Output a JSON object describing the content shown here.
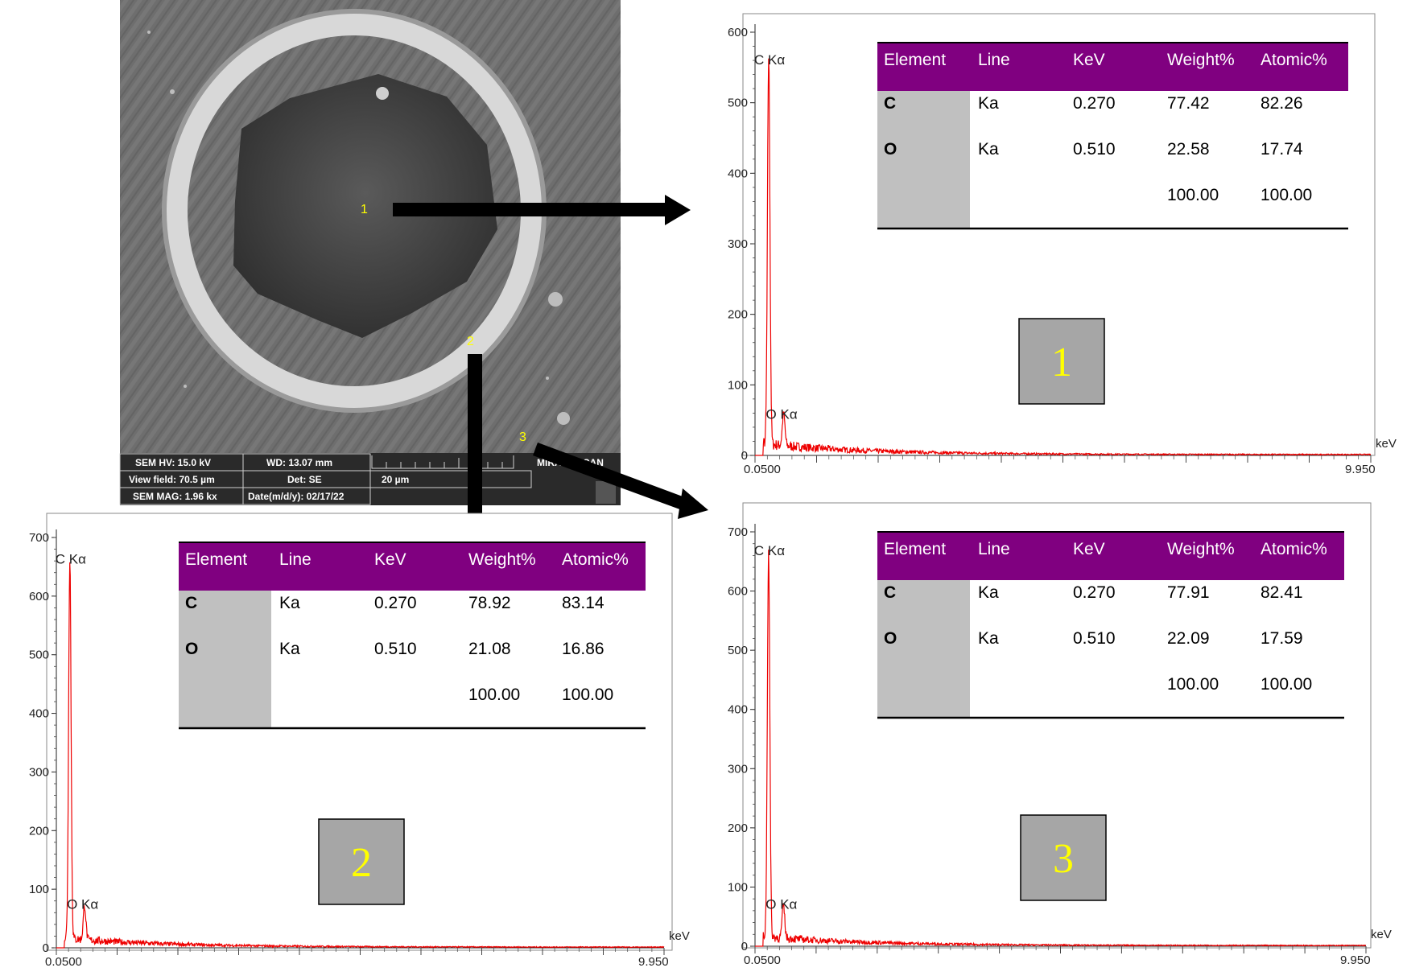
{
  "sem_image": {
    "point_labels": [
      "1",
      "2",
      "3"
    ],
    "info_bar": [
      [
        "SEM HV: 15.0 kV",
        "WD: 13.07 mm",
        "",
        "MIRA TESCAN"
      ],
      [
        "View field: 70.5 µm",
        "Det: SE",
        "20 µm",
        ""
      ],
      [
        "SEM MAG: 1.96 kx",
        "Date(m/d/y): 02/17/22",
        "",
        ""
      ]
    ]
  },
  "colors": {
    "spectrum": "#ee0000",
    "table_header_bg": "#800080",
    "table_header_text": "#ffffff",
    "element_column_bg": "#c0c0c0",
    "marker_box_bg": "#a6a6a6",
    "marker_text": "#ffff00",
    "point_label": "#ffff00"
  },
  "chart_data": [
    {
      "type": "line",
      "marker": "1",
      "x_unit": "keV",
      "xlim": [
        0.05,
        9.95
      ],
      "x_tick_labels": [
        "0.0500",
        "9.950"
      ],
      "ylim": [
        0,
        600
      ],
      "y_ticks": [
        0,
        100,
        200,
        300,
        400,
        500,
        600
      ],
      "peaks": [
        {
          "label": "C Kα",
          "x": 0.27,
          "y": 550
        },
        {
          "label": "O Kα",
          "x": 0.51,
          "y": 45
        }
      ],
      "table": {
        "columns": [
          "Element",
          "Line",
          "KeV",
          "Weight%",
          "Atomic%"
        ],
        "rows": [
          [
            "C",
            "Ka",
            "0.270",
            "77.42",
            "82.26"
          ],
          [
            "O",
            "Ka",
            "0.510",
            "22.58",
            "17.74"
          ],
          [
            "",
            "",
            "",
            "100.00",
            "100.00"
          ]
        ]
      }
    },
    {
      "type": "line",
      "marker": "2",
      "x_unit": "keV",
      "xlim": [
        0.05,
        9.95
      ],
      "x_tick_labels": [
        "0.0500",
        "9.950"
      ],
      "ylim": [
        0,
        700
      ],
      "y_ticks": [
        0,
        100,
        200,
        300,
        400,
        500,
        600,
        700
      ],
      "peaks": [
        {
          "label": "C Kα",
          "x": 0.27,
          "y": 650
        },
        {
          "label": "O Kα",
          "x": 0.51,
          "y": 58
        }
      ],
      "table": {
        "columns": [
          "Element",
          "Line",
          "KeV",
          "Weight%",
          "Atomic%"
        ],
        "rows": [
          [
            "C",
            "Ka",
            "0.270",
            "78.92",
            "83.14"
          ],
          [
            "O",
            "Ka",
            "0.510",
            "21.08",
            "16.86"
          ],
          [
            "",
            "",
            "",
            "100.00",
            "100.00"
          ]
        ]
      }
    },
    {
      "type": "line",
      "marker": "3",
      "x_unit": "keV",
      "xlim": [
        0.05,
        9.95
      ],
      "x_tick_labels": [
        "0.0500",
        "9.950"
      ],
      "ylim": [
        0,
        700
      ],
      "y_ticks": [
        0,
        100,
        200,
        300,
        400,
        500,
        600,
        700
      ],
      "peaks": [
        {
          "label": "C Kα",
          "x": 0.27,
          "y": 655
        },
        {
          "label": "O Kα",
          "x": 0.51,
          "y": 55
        }
      ],
      "table": {
        "columns": [
          "Element",
          "Line",
          "KeV",
          "Weight%",
          "Atomic%"
        ],
        "rows": [
          [
            "C",
            "Ka",
            "0.270",
            "77.91",
            "82.41"
          ],
          [
            "O",
            "Ka",
            "0.510",
            "22.09",
            "17.59"
          ],
          [
            "",
            "",
            "",
            "100.00",
            "100.00"
          ]
        ]
      }
    }
  ]
}
